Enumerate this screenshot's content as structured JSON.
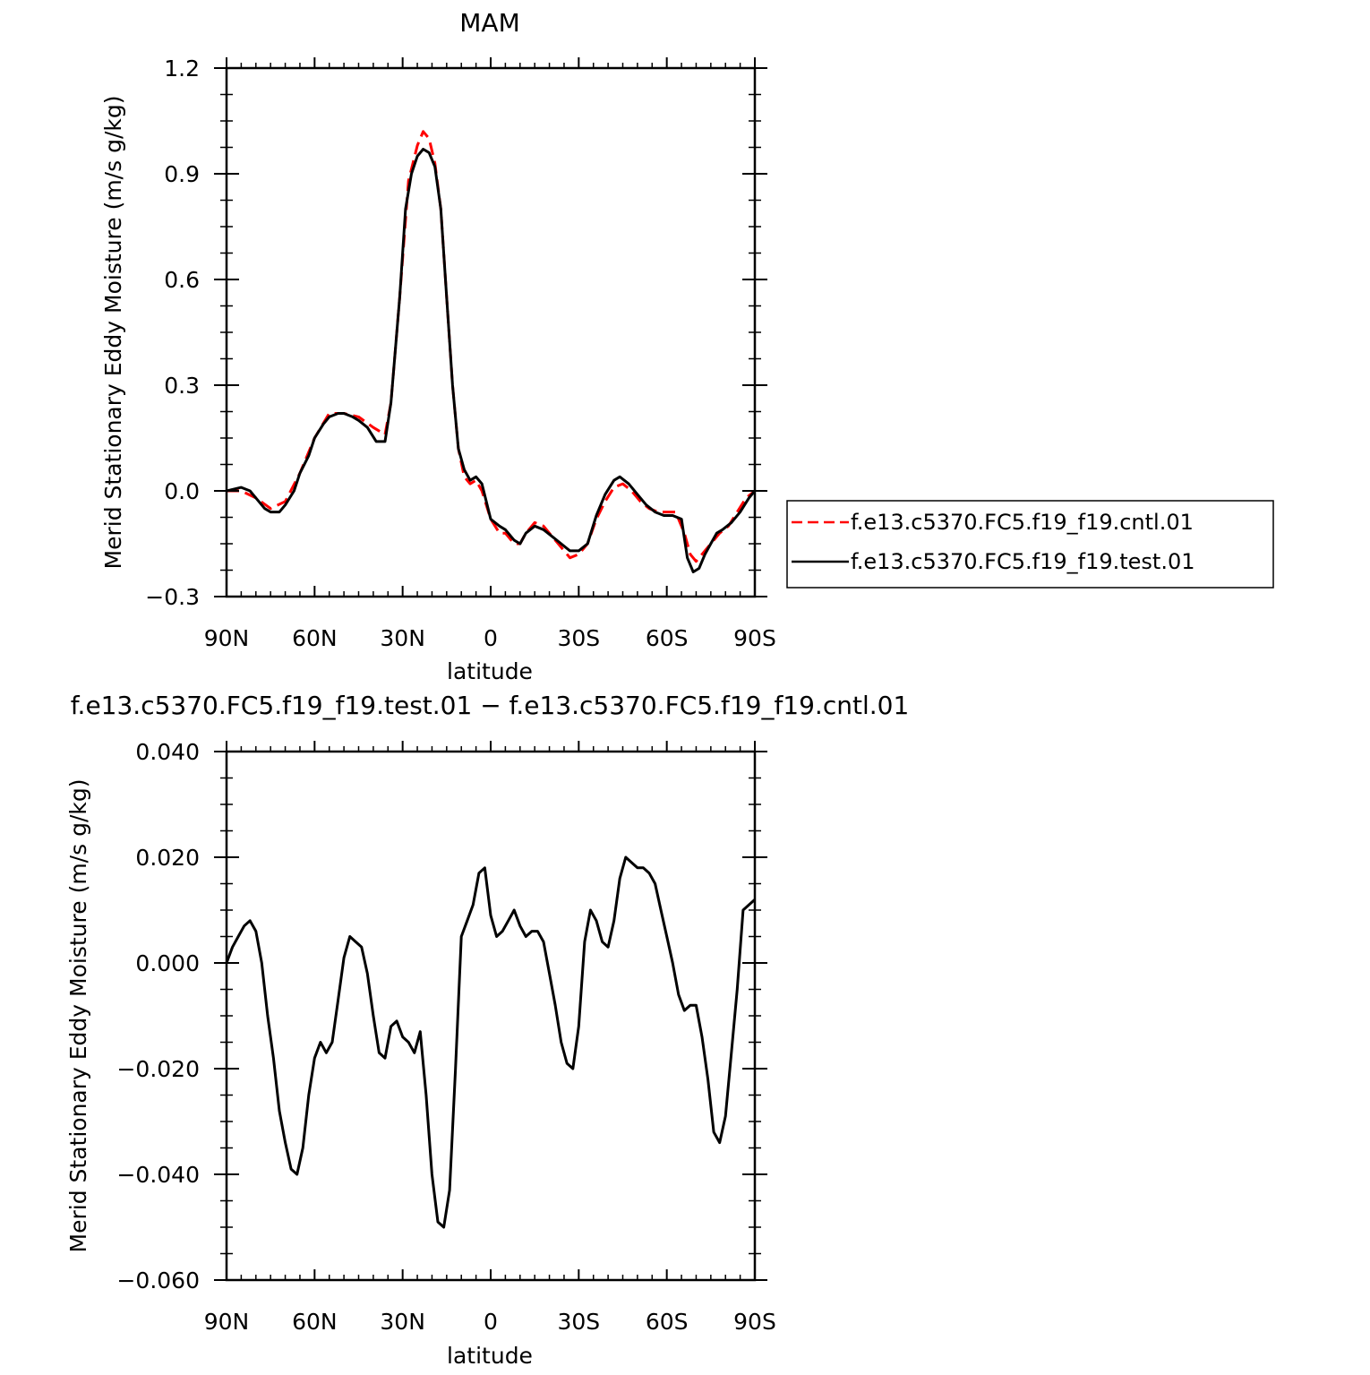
{
  "chart_data": [
    {
      "type": "line",
      "title": "MAM",
      "xlabel": "latitude",
      "ylabel": "Merid Stationary Eddy Moisture (m/s g/kg)",
      "xlim": [
        90,
        -90
      ],
      "ylim": [
        -0.3,
        1.2
      ],
      "x_ticks": [
        90,
        60,
        30,
        0,
        -30,
        -60,
        -90
      ],
      "x_tick_labels": [
        "90N",
        "60N",
        "30N",
        "0",
        "30S",
        "60S",
        "90S"
      ],
      "y_ticks": [
        -0.3,
        0.0,
        0.3,
        0.6,
        0.9,
        1.2
      ],
      "y_tick_labels": [
        "−0.3",
        "0.0",
        "0.3",
        "0.6",
        "0.9",
        "1.2"
      ],
      "legend_placement": "right",
      "series": [
        {
          "name": "f.e13.c5370.FC5.f19_f19.cntl.01",
          "color": "#ff0000",
          "dash": "dashed",
          "x": [
            90,
            85,
            80,
            75,
            70,
            65,
            60,
            55,
            50,
            45,
            40,
            36,
            34,
            31,
            28,
            25,
            23,
            21,
            19,
            17,
            15,
            13,
            11,
            9,
            7,
            5,
            3,
            0,
            -3,
            -5,
            -8,
            -10,
            -12,
            -15,
            -18,
            -21,
            -24,
            -27,
            -30,
            -33,
            -36,
            -39,
            -42,
            -45,
            -48,
            -51,
            -54,
            -57,
            -60,
            -63,
            -66,
            -68,
            -70,
            -72,
            -75,
            -78,
            -81,
            -84,
            -87,
            -90
          ],
          "y": [
            0.0,
            0.0,
            -0.02,
            -0.05,
            -0.03,
            0.05,
            0.15,
            0.22,
            0.22,
            0.21,
            0.18,
            0.16,
            0.25,
            0.55,
            0.88,
            0.98,
            1.02,
            1.0,
            0.93,
            0.8,
            0.55,
            0.3,
            0.12,
            0.04,
            0.02,
            0.03,
            0.0,
            -0.08,
            -0.12,
            -0.12,
            -0.15,
            -0.15,
            -0.12,
            -0.09,
            -0.1,
            -0.13,
            -0.16,
            -0.19,
            -0.18,
            -0.15,
            -0.08,
            -0.03,
            0.01,
            0.02,
            0.0,
            -0.03,
            -0.05,
            -0.06,
            -0.06,
            -0.06,
            -0.12,
            -0.18,
            -0.2,
            -0.18,
            -0.15,
            -0.12,
            -0.1,
            -0.06,
            -0.02,
            0.0
          ]
        },
        {
          "name": "f.e13.c5370.FC5.f19_f19.test.01",
          "color": "#000000",
          "dash": "solid",
          "x": [
            90,
            85,
            82,
            80,
            77,
            75,
            72,
            70,
            67,
            65,
            62,
            60,
            57,
            55,
            52,
            50,
            47,
            45,
            42,
            39,
            36,
            34,
            31,
            29,
            27,
            25,
            23,
            21,
            19,
            17,
            15,
            13,
            11,
            9,
            7,
            5,
            3,
            0,
            -3,
            -5,
            -8,
            -10,
            -12,
            -15,
            -18,
            -21,
            -24,
            -27,
            -30,
            -33,
            -36,
            -39,
            -42,
            -44,
            -47,
            -50,
            -53,
            -56,
            -59,
            -62,
            -65,
            -67,
            -69,
            -71,
            -73,
            -75,
            -77,
            -79,
            -82,
            -85,
            -88,
            -90
          ],
          "y": [
            0.0,
            0.01,
            0.0,
            -0.02,
            -0.05,
            -0.06,
            -0.06,
            -0.04,
            0.0,
            0.05,
            0.1,
            0.15,
            0.19,
            0.21,
            0.22,
            0.22,
            0.21,
            0.2,
            0.18,
            0.14,
            0.14,
            0.25,
            0.55,
            0.8,
            0.9,
            0.95,
            0.97,
            0.96,
            0.92,
            0.8,
            0.55,
            0.3,
            0.12,
            0.06,
            0.03,
            0.04,
            0.02,
            -0.08,
            -0.1,
            -0.11,
            -0.14,
            -0.15,
            -0.12,
            -0.1,
            -0.11,
            -0.13,
            -0.15,
            -0.17,
            -0.17,
            -0.15,
            -0.07,
            -0.01,
            0.03,
            0.04,
            0.02,
            -0.01,
            -0.04,
            -0.06,
            -0.07,
            -0.07,
            -0.08,
            -0.19,
            -0.23,
            -0.22,
            -0.18,
            -0.15,
            -0.12,
            -0.11,
            -0.09,
            -0.06,
            -0.02,
            0.0
          ]
        }
      ]
    },
    {
      "type": "line",
      "title": "f.e13.c5370.FC5.f19_f19.test.01 − f.e13.c5370.FC5.f19_f19.cntl.01",
      "xlabel": "latitude",
      "ylabel": "Merid Stationary Eddy Moisture (m/s g/kg)",
      "xlim": [
        90,
        -90
      ],
      "ylim": [
        -0.06,
        0.04
      ],
      "x_ticks": [
        90,
        60,
        30,
        0,
        -30,
        -60,
        -90
      ],
      "x_tick_labels": [
        "90N",
        "60N",
        "30N",
        "0",
        "30S",
        "60S",
        "90S"
      ],
      "y_ticks": [
        -0.06,
        -0.04,
        -0.02,
        0.0,
        0.02,
        0.04
      ],
      "y_tick_labels": [
        "−0.060",
        "−0.040",
        "−0.020",
        "0.000",
        "0.020",
        "0.040"
      ],
      "series": [
        {
          "color": "#000000",
          "dash": "solid",
          "x": [
            90,
            88,
            86,
            84,
            82,
            80,
            78,
            76,
            74,
            72,
            70,
            68,
            66,
            64,
            62,
            60,
            58,
            56,
            54,
            52,
            50,
            48,
            46,
            44,
            42,
            40,
            38,
            36,
            34,
            32,
            30,
            28,
            26,
            24,
            22,
            20,
            18,
            16,
            14,
            12,
            10,
            8,
            6,
            4,
            2,
            0,
            -2,
            -4,
            -6,
            -8,
            -10,
            -12,
            -14,
            -16,
            -18,
            -20,
            -22,
            -24,
            -26,
            -28,
            -30,
            -32,
            -34,
            -36,
            -38,
            -40,
            -42,
            -44,
            -46,
            -48,
            -50,
            -52,
            -54,
            -56,
            -58,
            -60,
            -62,
            -64,
            -66,
            -68,
            -70,
            -72,
            -74,
            -76,
            -78,
            -80,
            -82,
            -84,
            -86,
            -88,
            -90
          ],
          "y": [
            0.0,
            0.003,
            0.005,
            0.007,
            0.008,
            0.006,
            0.0,
            -0.01,
            -0.018,
            -0.028,
            -0.034,
            -0.039,
            -0.04,
            -0.035,
            -0.025,
            -0.018,
            -0.015,
            -0.017,
            -0.015,
            -0.007,
            0.001,
            0.005,
            0.004,
            0.003,
            -0.002,
            -0.01,
            -0.017,
            -0.018,
            -0.012,
            -0.011,
            -0.014,
            -0.015,
            -0.017,
            -0.013,
            -0.025,
            -0.04,
            -0.049,
            -0.05,
            -0.043,
            -0.02,
            0.005,
            0.008,
            0.011,
            0.017,
            0.018,
            0.009,
            0.005,
            0.006,
            0.008,
            0.01,
            0.007,
            0.005,
            0.006,
            0.006,
            0.004,
            -0.002,
            -0.008,
            -0.015,
            -0.019,
            -0.02,
            -0.012,
            0.004,
            0.01,
            0.008,
            0.004,
            0.003,
            0.008,
            0.016,
            0.02,
            0.019,
            0.018,
            0.018,
            0.017,
            0.015,
            0.01,
            0.005,
            0.0,
            -0.006,
            -0.009,
            -0.008,
            -0.008,
            -0.014,
            -0.022,
            -0.032,
            -0.034,
            -0.029,
            -0.017,
            -0.005,
            0.01,
            0.011,
            0.012
          ]
        }
      ]
    }
  ]
}
